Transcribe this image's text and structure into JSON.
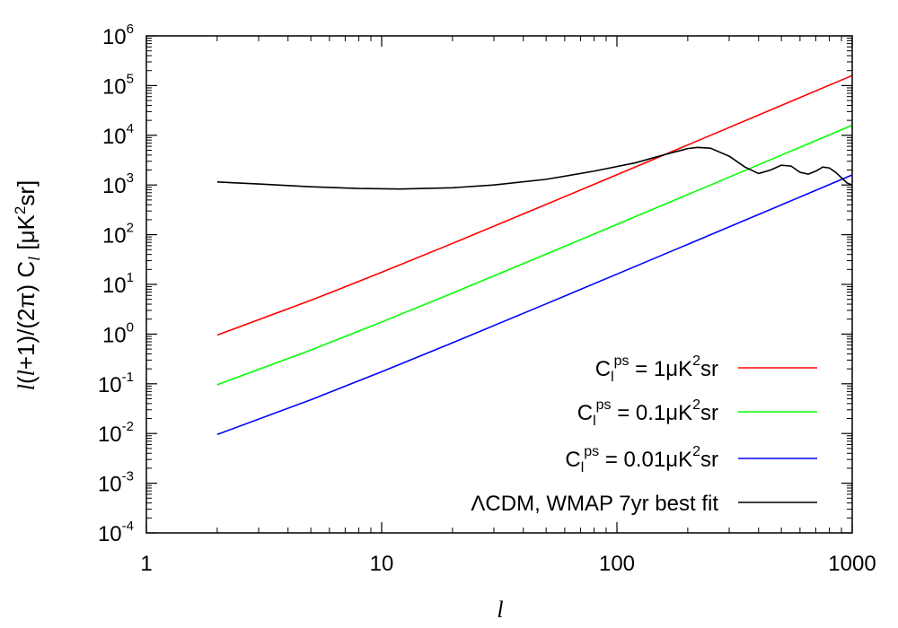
{
  "chart_data": {
    "type": "line",
    "xscale": "log",
    "yscale": "log",
    "xlim": [
      1,
      1000
    ],
    "ylim": [
      0.0001,
      1000000
    ],
    "xticks": [
      {
        "value": 1,
        "label": "1"
      },
      {
        "value": 10,
        "label": "10"
      },
      {
        "value": 100,
        "label": "100"
      },
      {
        "value": 1000,
        "label": "1000"
      }
    ],
    "yticks": [
      {
        "value": 0.0001,
        "base": "10",
        "exp": "-4"
      },
      {
        "value": 0.001,
        "base": "10",
        "exp": "-3"
      },
      {
        "value": 0.01,
        "base": "10",
        "exp": "-2"
      },
      {
        "value": 0.1,
        "base": "10",
        "exp": "-1"
      },
      {
        "value": 1,
        "base": "10",
        "exp": "0"
      },
      {
        "value": 10,
        "base": "10",
        "exp": "1"
      },
      {
        "value": 100,
        "base": "10",
        "exp": "2"
      },
      {
        "value": 1000,
        "base": "10",
        "exp": "3"
      },
      {
        "value": 10000,
        "base": "10",
        "exp": "4"
      },
      {
        "value": 100000,
        "base": "10",
        "exp": "5"
      },
      {
        "value": 1000000,
        "base": "10",
        "exp": "6"
      }
    ],
    "xlabel": "l",
    "ylabel": {
      "l1": "l",
      "p1": "(",
      "l2": "l",
      "p2": "+1)/(2π) C",
      "sub": "l",
      "p3": " [μK",
      "sup": "2",
      "p4": "sr]"
    },
    "legend_position": "bottom-right",
    "series": [
      {
        "legend": {
          "c": "C",
          "sub": "l",
          "sup1": "ps",
          "mid": " = 1μK",
          "sup2": "2",
          "tail": "sr"
        },
        "color": "#ff0000",
        "x": [
          2,
          5,
          10,
          20,
          50,
          100,
          200,
          500,
          1000
        ],
        "y": [
          0.955,
          4.77,
          17.5,
          66.8,
          406,
          1608,
          6398,
          39868,
          159314
        ]
      },
      {
        "legend": {
          "c": "C",
          "sub": "l",
          "sup1": "ps",
          "mid": " = 0.1μK",
          "sup2": "2",
          "tail": "sr"
        },
        "color": "#00ff00",
        "x": [
          2,
          5,
          10,
          20,
          50,
          100,
          200,
          500,
          1000
        ],
        "y": [
          0.0955,
          0.477,
          1.75,
          6.68,
          40.6,
          160.8,
          639.8,
          3986.8,
          15931.4
        ]
      },
      {
        "legend": {
          "c": "C",
          "sub": "l",
          "sup1": "ps",
          "mid": " = 0.01μK",
          "sup2": "2",
          "tail": "sr"
        },
        "color": "#0000ff",
        "x": [
          2,
          5,
          10,
          20,
          50,
          100,
          200,
          500,
          1000
        ],
        "y": [
          0.00955,
          0.0477,
          0.175,
          0.668,
          4.06,
          16.08,
          63.98,
          398.68,
          1593.14
        ]
      },
      {
        "legend": {
          "c": "",
          "sub": "",
          "sup1": "",
          "mid": "ΛCDM, WMAP 7yr best fit",
          "sup2": "",
          "tail": ""
        },
        "color": "#000000",
        "x": [
          2,
          3,
          5,
          8,
          12,
          20,
          30,
          50,
          80,
          120,
          160,
          200,
          220,
          250,
          300,
          350,
          400,
          450,
          500,
          550,
          600,
          650,
          700,
          750,
          800,
          850,
          900,
          950,
          1000
        ],
        "y": [
          1150,
          1050,
          920,
          850,
          830,
          880,
          1000,
          1300,
          1900,
          2800,
          4100,
          5400,
          5700,
          5500,
          3800,
          2300,
          1700,
          2000,
          2500,
          2400,
          1800,
          1650,
          1900,
          2300,
          2200,
          1800,
          1400,
          1100,
          1000
        ]
      }
    ]
  }
}
